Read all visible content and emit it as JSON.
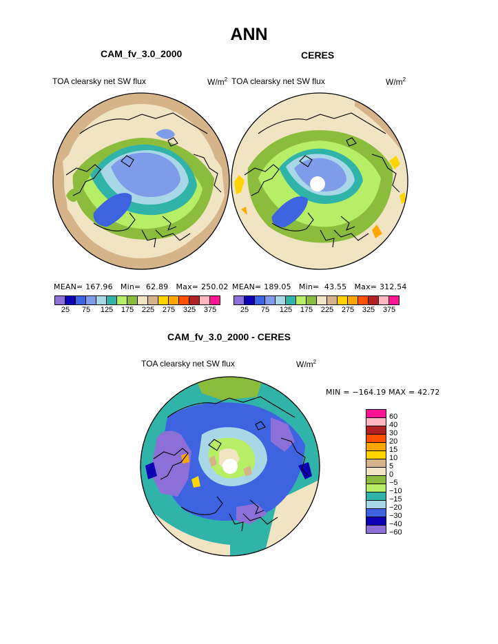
{
  "title": "ANN",
  "panels": [
    {
      "id": "model",
      "title": "CAM_fv_3.0_2000",
      "variable": "TOA clearsky net SW flux",
      "units_base": "W/m",
      "units_exp": "2",
      "stats": {
        "mean_label": "MEAN=",
        "mean": "167.96",
        "min_label": "Min=",
        "min": "62.89",
        "max_label": "Max=",
        "max": "250.02"
      }
    },
    {
      "id": "obs",
      "title": "CERES",
      "variable": "TOA clearsky net SW flux",
      "units_base": "W/m",
      "units_exp": "2",
      "stats": {
        "mean_label": "MEAN=",
        "mean": "189.05",
        "min_label": "Min=",
        "min": "43.55",
        "max_label": "Max=",
        "max": "312.54"
      }
    }
  ],
  "abs_colorbar": {
    "colors": [
      "#8c70d8",
      "#0d00b4",
      "#3e63e0",
      "#7f9cea",
      "#a8d8e8",
      "#30b3a8",
      "#b6ee66",
      "#8cbc3c",
      "#f1e4c3",
      "#d5b48a",
      "#ffd400",
      "#ffa700",
      "#ff5000",
      "#b22222",
      "#ffb6c1",
      "#ff1493"
    ],
    "tick_labels": [
      "25",
      "75",
      "125",
      "175",
      "225",
      "275",
      "325",
      "375"
    ]
  },
  "diff_panel": {
    "title": "CAM_fv_3.0_2000 - CERES",
    "variable": "TOA clearsky net SW flux",
    "units_base": "W/m",
    "units_exp": "2",
    "minmax": "MIN = −164.19 MAX =   42.72",
    "colorbar": {
      "colors": [
        "#ff1493",
        "#ffb6c1",
        "#b22222",
        "#ff5000",
        "#ffa700",
        "#ffd400",
        "#d5b48a",
        "#f1e4c3",
        "#8cbc3c",
        "#b6ee66",
        "#30b3a8",
        "#a8d8e8",
        "#3e63e0",
        "#0d00b4",
        "#8c70d8"
      ],
      "labels": [
        "60",
        "40",
        "30",
        "20",
        "15",
        "10",
        "5",
        "0",
        "−5",
        "−10",
        "−15",
        "−20",
        "−30",
        "−40",
        "−60"
      ]
    }
  }
}
